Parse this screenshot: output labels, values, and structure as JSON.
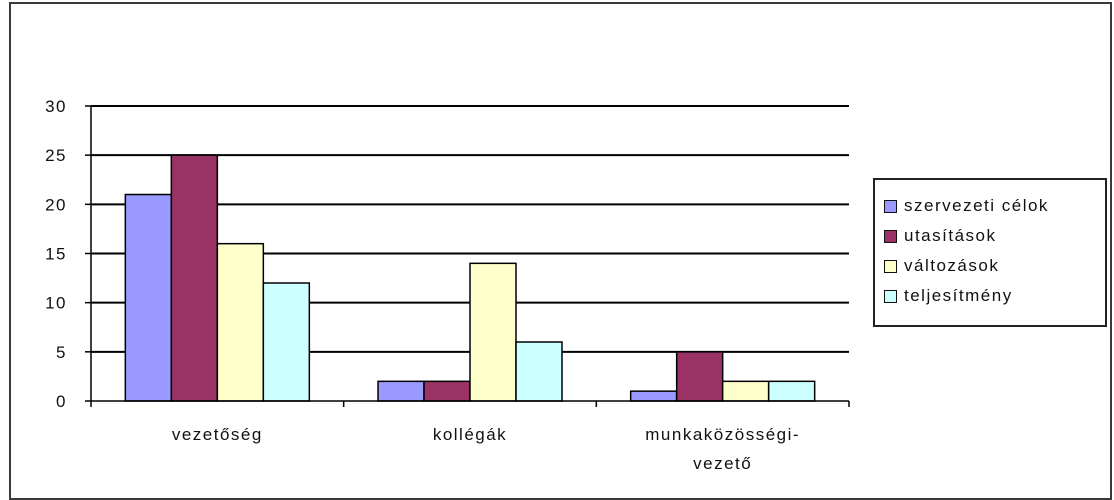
{
  "chart_data": {
    "type": "bar",
    "categories": [
      "vezetőség",
      "kollégák",
      "munkaközösségi-\nvezető"
    ],
    "series": [
      {
        "name": "szervezeti célok",
        "values": [
          21,
          2,
          1
        ],
        "color": "#9999ff"
      },
      {
        "name": "utasítások",
        "values": [
          25,
          2,
          5
        ],
        "color": "#993366"
      },
      {
        "name": "változások",
        "values": [
          16,
          14,
          2
        ],
        "color": "#ffffcc"
      },
      {
        "name": "teljesítmény",
        "values": [
          12,
          6,
          2
        ],
        "color": "#ccffff"
      }
    ],
    "yticks": [
      "0",
      "5",
      "10",
      "15",
      "20",
      "25",
      "30"
    ],
    "ylim": [
      0,
      30
    ],
    "grid": true,
    "legend_position": "right"
  }
}
